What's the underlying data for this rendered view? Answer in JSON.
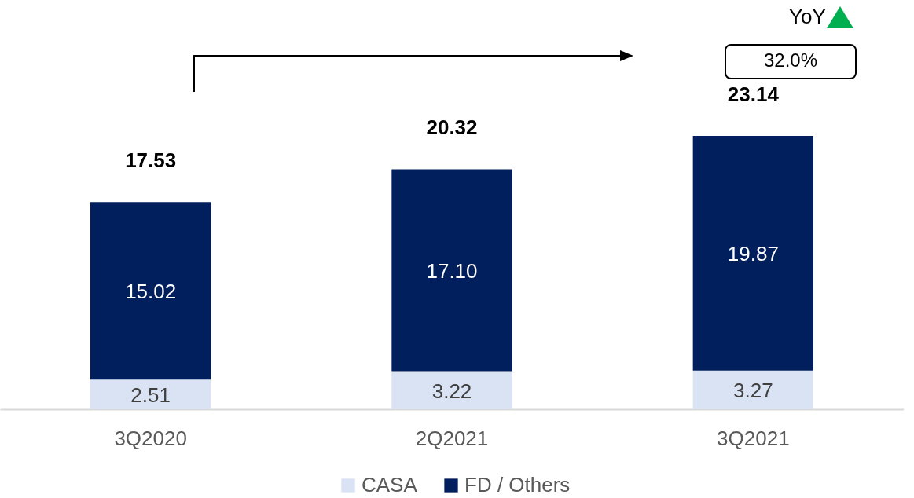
{
  "chart_data": {
    "type": "bar",
    "stacked": true,
    "categories": [
      "3Q2020",
      "2Q2021",
      "3Q2021"
    ],
    "series": [
      {
        "name": "CASA",
        "color": "#dae3f3",
        "values": [
          2.51,
          3.22,
          3.27
        ],
        "value_labels": [
          "2.51",
          "3.22",
          "3.27"
        ]
      },
      {
        "name": "FD / Others",
        "color": "#001f5c",
        "values": [
          15.02,
          17.1,
          19.87
        ],
        "value_labels": [
          "15.02",
          "17.10",
          "19.87"
        ]
      }
    ],
    "totals": [
      "17.53",
      "20.32",
      "23.14"
    ],
    "legend": "bottom",
    "annotations": [
      "YoY",
      "32.0%"
    ]
  }
}
